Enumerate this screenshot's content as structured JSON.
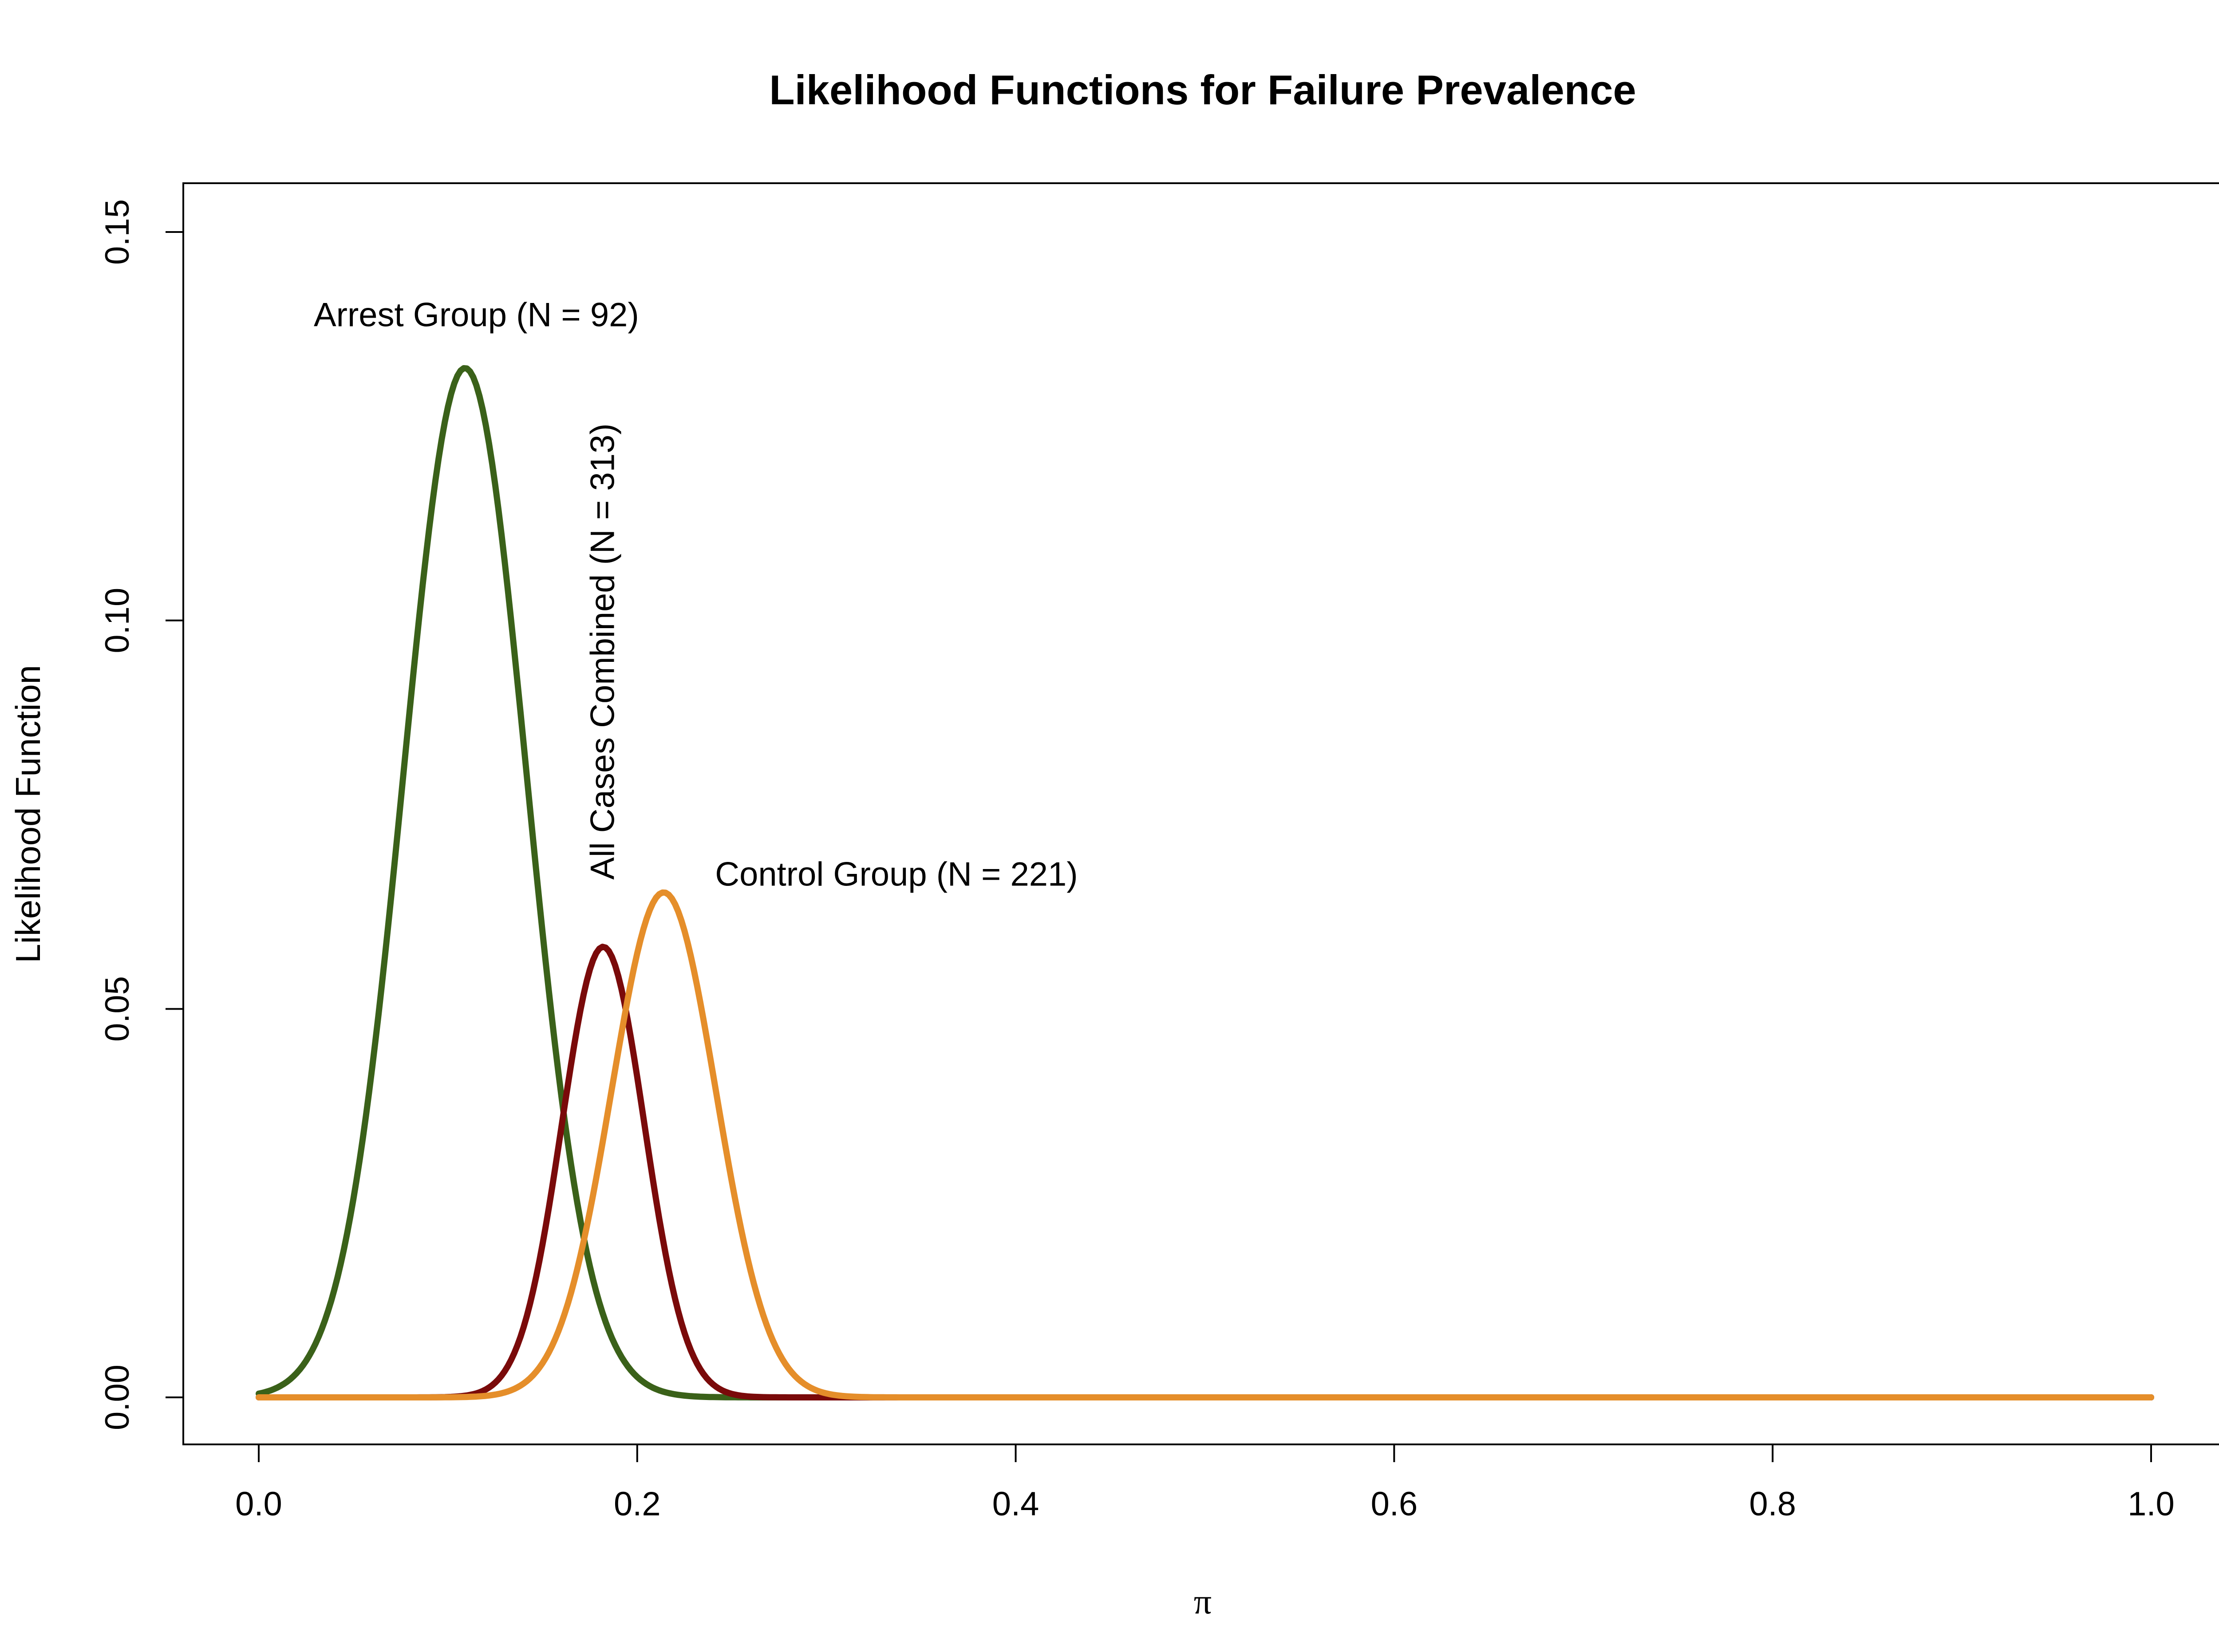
{
  "chart_data": {
    "type": "line",
    "title": "Likelihood Functions for Failure Prevalence",
    "xlabel": "π",
    "ylabel": "Likelihood Function",
    "xlim": [
      0.0,
      1.0
    ],
    "ylim": [
      0.0,
      0.15
    ],
    "x_ticks": [
      "0.0",
      "0.2",
      "0.4",
      "0.6",
      "0.8",
      "1.0"
    ],
    "y_ticks": [
      "0.00",
      "0.05",
      "0.10",
      "0.15"
    ],
    "grid": false,
    "series": [
      {
        "name": "Arrest Group (N = 92)",
        "color": "#3a6119",
        "peak_x": 0.109,
        "peak_y": 0.1325,
        "sd": 0.0325
      },
      {
        "name": "All Cases Combined (N = 313)",
        "color": "#7a0a0a",
        "peak_x": 0.182,
        "peak_y": 0.058,
        "sd": 0.0218
      },
      {
        "name": "Control Group (N = 221)",
        "color": "#e58e2a",
        "peak_x": 0.214,
        "peak_y": 0.065,
        "sd": 0.0276
      }
    ],
    "annotations": [
      {
        "text": "Arrest Group (N = 92)",
        "x": 0.115,
        "y": 0.139,
        "rotation": 0
      },
      {
        "text": "All Cases Combined (N = 313)",
        "x": 0.183,
        "y": 0.096,
        "rotation": -90
      },
      {
        "text": "Control Group (N = 221)",
        "x": 0.337,
        "y": 0.067,
        "rotation": 0
      }
    ]
  }
}
